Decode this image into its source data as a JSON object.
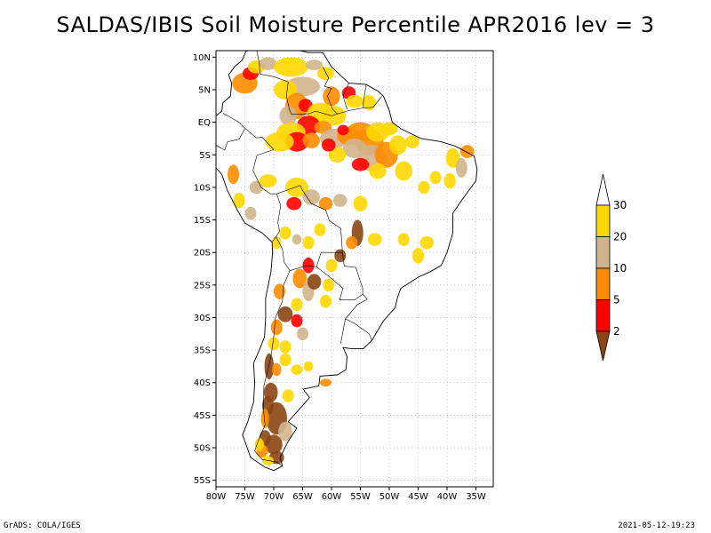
{
  "title": "SALDAS/IBIS Soil Moisture Percentile APR2016 lev = 3",
  "footer_left": "GrADS: COLA/IGES",
  "footer_right": "2021-05-12-19:23",
  "colors": {
    "lt2": "#8b4513",
    "p2_5": "#ff0000",
    "p5_10": "#ff8c00",
    "p10_20": "#d2b48c",
    "p20_30": "#ffd700",
    "gt30": "#ffffff"
  },
  "chart_data": {
    "type": "map",
    "lon_range": [
      -80,
      -32
    ],
    "lat_range": [
      -56,
      11
    ],
    "lon_ticks": [
      {
        "value": -80,
        "label": "80W"
      },
      {
        "value": -75,
        "label": "75W"
      },
      {
        "value": -70,
        "label": "70W"
      },
      {
        "value": -65,
        "label": "65W"
      },
      {
        "value": -60,
        "label": "60W"
      },
      {
        "value": -55,
        "label": "55W"
      },
      {
        "value": -50,
        "label": "50W"
      },
      {
        "value": -45,
        "label": "45W"
      },
      {
        "value": -40,
        "label": "40W"
      },
      {
        "value": -35,
        "label": "35W"
      }
    ],
    "lat_ticks": [
      {
        "value": 10,
        "label": "10N"
      },
      {
        "value": 5,
        "label": "5N"
      },
      {
        "value": 0,
        "label": "EQ"
      },
      {
        "value": -5,
        "label": "5S"
      },
      {
        "value": -10,
        "label": "10S"
      },
      {
        "value": -15,
        "label": "15S"
      },
      {
        "value": -20,
        "label": "20S"
      },
      {
        "value": -25,
        "label": "25S"
      },
      {
        "value": -30,
        "label": "30S"
      },
      {
        "value": -35,
        "label": "35S"
      },
      {
        "value": -40,
        "label": "40S"
      },
      {
        "value": -45,
        "label": "45S"
      },
      {
        "value": -50,
        "label": "50S"
      },
      {
        "value": -55,
        "label": "55S"
      }
    ],
    "legend": {
      "labels": [
        "2",
        "5",
        "10",
        "20",
        "30"
      ],
      "classes": [
        {
          "color": "#8b4513"
        },
        {
          "color": "#ff0000"
        },
        {
          "color": "#ff8c00"
        },
        {
          "color": "#d2b48c"
        },
        {
          "color": "#ffd700"
        },
        {
          "color": "#ffffff"
        }
      ]
    },
    "coastline": [
      [
        -71.5,
        12.3
      ],
      [
        -68,
        11.5
      ],
      [
        -64,
        10.7
      ],
      [
        -61.5,
        10.7
      ],
      [
        -60,
        8.5
      ],
      [
        -57,
        6
      ],
      [
        -54,
        5.8
      ],
      [
        -52,
        4.8
      ],
      [
        -51,
        4
      ],
      [
        -50,
        1.8
      ],
      [
        -49.5,
        0
      ],
      [
        -48,
        -1
      ],
      [
        -44.5,
        -2.5
      ],
      [
        -41,
        -3
      ],
      [
        -38.5,
        -3.7
      ],
      [
        -35.3,
        -5.2
      ],
      [
        -34.8,
        -7.2
      ],
      [
        -35,
        -9
      ],
      [
        -37.5,
        -12
      ],
      [
        -39,
        -14
      ],
      [
        -39,
        -17
      ],
      [
        -40,
        -20
      ],
      [
        -41,
        -22
      ],
      [
        -43,
        -23
      ],
      [
        -45,
        -23.8
      ],
      [
        -48,
        -25.5
      ],
      [
        -48.6,
        -27
      ],
      [
        -49,
        -28.5
      ],
      [
        -51,
        -30.5
      ],
      [
        -53,
        -33.5
      ],
      [
        -54.5,
        -34.8
      ],
      [
        -56.5,
        -34.8
      ],
      [
        -58,
        -34.6
      ],
      [
        -57.3,
        -36
      ],
      [
        -57.5,
        -38
      ],
      [
        -59,
        -38.8
      ],
      [
        -62,
        -39
      ],
      [
        -62.2,
        -40.5
      ],
      [
        -64.9,
        -41
      ],
      [
        -63.8,
        -42.3
      ],
      [
        -65,
        -43.5
      ],
      [
        -67.5,
        -46
      ],
      [
        -66,
        -47
      ],
      [
        -67.5,
        -49
      ],
      [
        -68.9,
        -51.5
      ],
      [
        -68.5,
        -52.8
      ],
      [
        -70,
        -53.5
      ],
      [
        -71.5,
        -53
      ],
      [
        -74,
        -51.5
      ],
      [
        -75.4,
        -48
      ],
      [
        -74.5,
        -46
      ],
      [
        -73.5,
        -43
      ],
      [
        -73.3,
        -40
      ],
      [
        -73.5,
        -37
      ],
      [
        -72.5,
        -35
      ],
      [
        -71.6,
        -33
      ],
      [
        -71.4,
        -30
      ],
      [
        -71.4,
        -27
      ],
      [
        -70.5,
        -23
      ],
      [
        -70.2,
        -20
      ],
      [
        -70.3,
        -18.4
      ],
      [
        -72,
        -17
      ],
      [
        -75,
        -15.5
      ],
      [
        -76.3,
        -13.5
      ],
      [
        -78,
        -10.5
      ],
      [
        -79,
        -8
      ],
      [
        -81,
        -6
      ],
      [
        -81.2,
        -4.5
      ],
      [
        -80.2,
        -3.4
      ],
      [
        -80,
        -2
      ],
      [
        -80.6,
        -0.5
      ],
      [
        -80,
        1
      ],
      [
        -79,
        1.7
      ],
      [
        -78.8,
        3
      ],
      [
        -77.5,
        4
      ],
      [
        -77.3,
        6
      ],
      [
        -77.8,
        7.3
      ],
      [
        -76.7,
        8.6
      ],
      [
        -75.5,
        9.5
      ],
      [
        -74.8,
        10.9
      ],
      [
        -73,
        11.3
      ],
      [
        -71.5,
        12.3
      ]
    ],
    "borders": [
      [
        [
          -73,
          11.3
        ],
        [
          -72.5,
          9
        ],
        [
          -72.4,
          7.4
        ],
        [
          -70,
          7
        ],
        [
          -67.5,
          6.2
        ],
        [
          -67.8,
          4
        ],
        [
          -67.3,
          2
        ],
        [
          -66.9,
          1.2
        ]
      ],
      [
        [
          -61.5,
          8.5
        ],
        [
          -60.5,
          6.8
        ],
        [
          -61.2,
          5.5
        ],
        [
          -60,
          5.2
        ],
        [
          -60.7,
          4
        ],
        [
          -59.8,
          2
        ],
        [
          -59,
          1.3
        ]
      ],
      [
        [
          -57,
          6
        ],
        [
          -58,
          4
        ],
        [
          -57.3,
          2
        ]
      ],
      [
        [
          -54,
          5.8
        ],
        [
          -54.5,
          3
        ],
        [
          -54.5,
          2.2
        ]
      ],
      [
        [
          -66.9,
          1.2
        ],
        [
          -64,
          1.3
        ],
        [
          -62.7,
          1.7
        ],
        [
          -60,
          1
        ],
        [
          -57,
          1.8
        ],
        [
          -54.5,
          2.2
        ],
        [
          -52.8,
          2.3
        ],
        [
          -51.3,
          4
        ]
      ],
      [
        [
          -78.8,
          1.4
        ],
        [
          -76,
          0
        ],
        [
          -75,
          -0.9
        ],
        [
          -73,
          -2.4
        ],
        [
          -72,
          -2.3
        ],
        [
          -70,
          -4.2
        ]
      ],
      [
        [
          -80.2,
          -3.4
        ],
        [
          -78.5,
          -4.3
        ],
        [
          -78,
          -3
        ],
        [
          -76,
          -2.6
        ],
        [
          -75,
          -1
        ]
      ],
      [
        [
          -70,
          -4.2
        ],
        [
          -72.9,
          -5.1
        ],
        [
          -73.6,
          -7.4
        ],
        [
          -72.2,
          -10
        ],
        [
          -70.6,
          -11
        ],
        [
          -69.5,
          -11
        ]
      ],
      [
        [
          -69.5,
          -11
        ],
        [
          -65.4,
          -9.7
        ],
        [
          -65,
          -10.5
        ],
        [
          -63.5,
          -12.5
        ],
        [
          -61,
          -13.5
        ],
        [
          -60.4,
          -15.1
        ],
        [
          -58.4,
          -16.3
        ],
        [
          -58.1,
          -20
        ]
      ],
      [
        [
          -69.5,
          -11
        ],
        [
          -68.8,
          -12.8
        ],
        [
          -69.3,
          -15.4
        ],
        [
          -69,
          -16.7
        ],
        [
          -69.6,
          -17.6
        ],
        [
          -68.5,
          -19.5
        ],
        [
          -68.2,
          -21.5
        ],
        [
          -67.2,
          -22.8
        ]
      ],
      [
        [
          -70.3,
          -18.4
        ],
        [
          -69.6,
          -17.6
        ]
      ],
      [
        [
          -67.2,
          -22.8
        ],
        [
          -64.3,
          -22
        ],
        [
          -62.6,
          -22.2
        ],
        [
          -61.8,
          -20
        ],
        [
          -58.1,
          -20
        ]
      ],
      [
        [
          -58.1,
          -20
        ],
        [
          -57.8,
          -22.1
        ],
        [
          -55.8,
          -22.3
        ],
        [
          -54.6,
          -25.5
        ],
        [
          -54.6,
          -26.4
        ],
        [
          -56,
          -27.3
        ],
        [
          -58.6,
          -27.3
        ],
        [
          -58,
          -25.5
        ],
        [
          -60,
          -24
        ],
        [
          -62.6,
          -22.2
        ]
      ],
      [
        [
          -54.6,
          -26.4
        ],
        [
          -53.8,
          -27.2
        ],
        [
          -55.5,
          -28
        ],
        [
          -57.6,
          -30.2
        ],
        [
          -56,
          -30.9
        ],
        [
          -53.5,
          -32.5
        ],
        [
          -53,
          -33.5
        ]
      ],
      [
        [
          -57.6,
          -30.2
        ],
        [
          -58.2,
          -33
        ],
        [
          -58.4,
          -34
        ]
      ],
      [
        [
          -67.2,
          -22.8
        ],
        [
          -68.3,
          -25
        ],
        [
          -68.5,
          -27.5
        ],
        [
          -69.7,
          -30
        ],
        [
          -70,
          -33
        ],
        [
          -70.5,
          -36
        ],
        [
          -71,
          -38
        ],
        [
          -71.7,
          -40.5
        ],
        [
          -71.8,
          -44
        ],
        [
          -71.5,
          -46.5
        ],
        [
          -72.5,
          -48.5
        ],
        [
          -73.3,
          -50.5
        ],
        [
          -72,
          -51.8
        ],
        [
          -69.5,
          -52.2
        ],
        [
          -68.5,
          -52.8
        ]
      ]
    ]
  }
}
